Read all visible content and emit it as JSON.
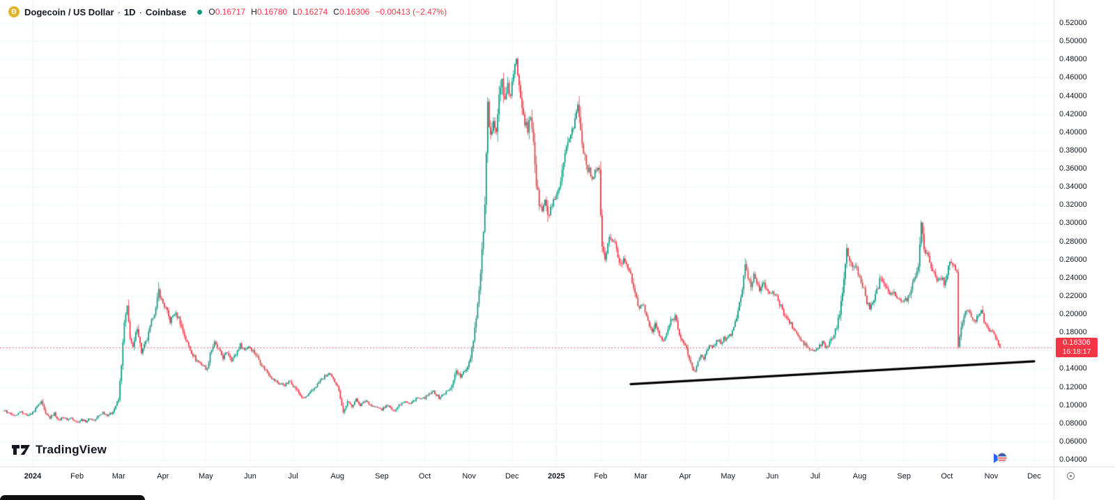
{
  "header": {
    "symbol_letter": "Ð",
    "title": "Dogecoin / US Dollar",
    "dot": "·",
    "interval": "1D",
    "exchange": "Coinbase",
    "ohlc": {
      "o_label": "O",
      "o": "0.16717",
      "h_label": "H",
      "h": "0.16780",
      "l_label": "L",
      "l": "0.16274",
      "c_label": "C",
      "c": "0.16306",
      "change": "−0.00413 (−2.47%)"
    }
  },
  "last_price": {
    "value": "0.16306",
    "countdown": "16:18:17"
  },
  "logo": {
    "text": "TradingView"
  },
  "colors": {
    "up": "#089981",
    "down": "#F23645",
    "grid": "#f0f3fa",
    "text": "#131722",
    "axis_border": "#e0e3eb",
    "trendline": "#000000",
    "symbol_icon_bg": "#e0b42c",
    "status_dot": "#089981"
  },
  "price_axis": {
    "labels": [
      "0.52000",
      "0.50000",
      "0.48000",
      "0.46000",
      "0.44000",
      "0.42000",
      "0.40000",
      "0.38000",
      "0.36000",
      "0.34000",
      "0.32000",
      "0.30000",
      "0.28000",
      "0.26000",
      "0.24000",
      "0.22000",
      "0.20000",
      "0.18000",
      "0.16000",
      "0.14000",
      "0.12000",
      "0.10000",
      "0.08000",
      "0.06000",
      "0.04000"
    ]
  },
  "chart_data": {
    "type": "candlestick",
    "title": "Dogecoin / US Dollar · 1D · Coinbase",
    "interval": "1D",
    "ylim": [
      0.04,
      0.52
    ],
    "grid_step": 0.02,
    "day_range": [
      -20,
      676
    ],
    "ticks": [
      {
        "label": "2024",
        "day": 0,
        "bold": true
      },
      {
        "label": "Feb",
        "day": 31
      },
      {
        "label": "Mar",
        "day": 60
      },
      {
        "label": "Apr",
        "day": 91
      },
      {
        "label": "May",
        "day": 121
      },
      {
        "label": "Jun",
        "day": 152
      },
      {
        "label": "Jul",
        "day": 182
      },
      {
        "label": "Aug",
        "day": 213
      },
      {
        "label": "Sep",
        "day": 244
      },
      {
        "label": "Oct",
        "day": 274
      },
      {
        "label": "Nov",
        "day": 305
      },
      {
        "label": "Dec",
        "day": 335
      },
      {
        "label": "2025",
        "day": 366,
        "bold": true
      },
      {
        "label": "Feb",
        "day": 397
      },
      {
        "label": "Mar",
        "day": 425
      },
      {
        "label": "Apr",
        "day": 456
      },
      {
        "label": "May",
        "day": 486
      },
      {
        "label": "Jun",
        "day": 517
      },
      {
        "label": "Jul",
        "day": 547
      },
      {
        "label": "Aug",
        "day": 578
      },
      {
        "label": "Sep",
        "day": 609
      },
      {
        "label": "Oct",
        "day": 639
      },
      {
        "label": "Nov",
        "day": 670
      },
      {
        "label": "Dec",
        "day": 700
      }
    ],
    "price_path": [
      [
        -20,
        0.094
      ],
      [
        -14,
        0.089
      ],
      [
        -8,
        0.092
      ],
      [
        -3,
        0.088
      ],
      [
        0,
        0.092
      ],
      [
        3,
        0.098
      ],
      [
        6,
        0.103
      ],
      [
        9,
        0.09
      ],
      [
        12,
        0.086
      ],
      [
        15,
        0.091
      ],
      [
        18,
        0.083
      ],
      [
        21,
        0.087
      ],
      [
        24,
        0.084
      ],
      [
        27,
        0.086
      ],
      [
        31,
        0.081
      ],
      [
        34,
        0.084
      ],
      [
        37,
        0.082
      ],
      [
        40,
        0.085
      ],
      [
        43,
        0.083
      ],
      [
        46,
        0.088
      ],
      [
        49,
        0.092
      ],
      [
        52,
        0.089
      ],
      [
        55,
        0.091
      ],
      [
        57,
        0.096
      ],
      [
        60,
        0.106
      ],
      [
        62,
        0.145
      ],
      [
        64,
        0.19
      ],
      [
        66,
        0.207
      ],
      [
        68,
        0.175
      ],
      [
        70,
        0.162
      ],
      [
        73,
        0.186
      ],
      [
        76,
        0.158
      ],
      [
        80,
        0.172
      ],
      [
        84,
        0.198
      ],
      [
        86,
        0.205
      ],
      [
        88,
        0.226
      ],
      [
        90,
        0.215
      ],
      [
        93,
        0.206
      ],
      [
        96,
        0.192
      ],
      [
        99,
        0.201
      ],
      [
        102,
        0.196
      ],
      [
        105,
        0.181
      ],
      [
        108,
        0.168
      ],
      [
        111,
        0.158
      ],
      [
        114,
        0.15
      ],
      [
        118,
        0.145
      ],
      [
        122,
        0.139
      ],
      [
        124,
        0.158
      ],
      [
        127,
        0.168
      ],
      [
        130,
        0.16
      ],
      [
        133,
        0.152
      ],
      [
        136,
        0.158
      ],
      [
        139,
        0.15
      ],
      [
        142,
        0.156
      ],
      [
        145,
        0.166
      ],
      [
        148,
        0.161
      ],
      [
        151,
        0.165
      ],
      [
        155,
        0.158
      ],
      [
        158,
        0.15
      ],
      [
        161,
        0.142
      ],
      [
        164,
        0.136
      ],
      [
        168,
        0.128
      ],
      [
        172,
        0.124
      ],
      [
        176,
        0.122
      ],
      [
        180,
        0.126
      ],
      [
        183,
        0.12
      ],
      [
        186,
        0.113
      ],
      [
        189,
        0.107
      ],
      [
        192,
        0.11
      ],
      [
        195,
        0.115
      ],
      [
        198,
        0.121
      ],
      [
        201,
        0.127
      ],
      [
        204,
        0.131
      ],
      [
        207,
        0.134
      ],
      [
        210,
        0.128
      ],
      [
        213,
        0.122
      ],
      [
        215,
        0.108
      ],
      [
        217,
        0.092
      ],
      [
        220,
        0.103
      ],
      [
        223,
        0.099
      ],
      [
        226,
        0.106
      ],
      [
        229,
        0.1
      ],
      [
        233,
        0.105
      ],
      [
        237,
        0.099
      ],
      [
        241,
        0.097
      ],
      [
        244,
        0.095
      ],
      [
        248,
        0.1
      ],
      [
        252,
        0.093
      ],
      [
        256,
        0.1
      ],
      [
        260,
        0.105
      ],
      [
        264,
        0.101
      ],
      [
        268,
        0.108
      ],
      [
        272,
        0.106
      ],
      [
        276,
        0.11
      ],
      [
        280,
        0.115
      ],
      [
        284,
        0.108
      ],
      [
        288,
        0.113
      ],
      [
        292,
        0.118
      ],
      [
        296,
        0.138
      ],
      [
        299,
        0.131
      ],
      [
        302,
        0.137
      ],
      [
        304,
        0.143
      ],
      [
        306,
        0.153
      ],
      [
        308,
        0.172
      ],
      [
        310,
        0.198
      ],
      [
        312,
        0.225
      ],
      [
        314,
        0.268
      ],
      [
        316,
        0.318
      ],
      [
        317,
        0.372
      ],
      [
        318,
        0.428
      ],
      [
        319,
        0.405
      ],
      [
        320,
        0.392
      ],
      [
        322,
        0.418
      ],
      [
        324,
        0.402
      ],
      [
        326,
        0.438
      ],
      [
        328,
        0.458
      ],
      [
        330,
        0.432
      ],
      [
        332,
        0.448
      ],
      [
        334,
        0.442
      ],
      [
        336,
        0.462
      ],
      [
        338,
        0.478
      ],
      [
        340,
        0.455
      ],
      [
        342,
        0.432
      ],
      [
        344,
        0.412
      ],
      [
        346,
        0.4
      ],
      [
        348,
        0.418
      ],
      [
        350,
        0.392
      ],
      [
        352,
        0.342
      ],
      [
        354,
        0.322
      ],
      [
        356,
        0.312
      ],
      [
        358,
        0.326
      ],
      [
        360,
        0.306
      ],
      [
        362,
        0.316
      ],
      [
        364,
        0.322
      ],
      [
        366,
        0.326
      ],
      [
        369,
        0.345
      ],
      [
        372,
        0.372
      ],
      [
        375,
        0.396
      ],
      [
        378,
        0.406
      ],
      [
        380,
        0.421
      ],
      [
        381,
        0.432
      ],
      [
        383,
        0.401
      ],
      [
        385,
        0.381
      ],
      [
        387,
        0.366
      ],
      [
        389,
        0.356
      ],
      [
        391,
        0.351
      ],
      [
        394,
        0.361
      ],
      [
        396,
        0.354
      ],
      [
        398,
        0.272
      ],
      [
        400,
        0.261
      ],
      [
        402,
        0.276
      ],
      [
        404,
        0.286
      ],
      [
        407,
        0.276
      ],
      [
        409,
        0.263
      ],
      [
        411,
        0.253
      ],
      [
        413,
        0.263
      ],
      [
        415,
        0.257
      ],
      [
        417,
        0.247
      ],
      [
        419,
        0.236
      ],
      [
        421,
        0.221
      ],
      [
        423,
        0.211
      ],
      [
        425,
        0.207
      ],
      [
        427,
        0.209
      ],
      [
        429,
        0.198
      ],
      [
        431,
        0.189
      ],
      [
        433,
        0.179
      ],
      [
        435,
        0.189
      ],
      [
        437,
        0.181
      ],
      [
        439,
        0.173
      ],
      [
        441,
        0.169
      ],
      [
        443,
        0.179
      ],
      [
        446,
        0.192
      ],
      [
        449,
        0.198
      ],
      [
        451,
        0.186
      ],
      [
        453,
        0.173
      ],
      [
        455,
        0.167
      ],
      [
        457,
        0.161
      ],
      [
        459,
        0.151
      ],
      [
        461,
        0.141
      ],
      [
        463,
        0.136
      ],
      [
        465,
        0.148
      ],
      [
        467,
        0.156
      ],
      [
        469,
        0.152
      ],
      [
        471,
        0.158
      ],
      [
        473,
        0.165
      ],
      [
        475,
        0.162
      ],
      [
        477,
        0.168
      ],
      [
        479,
        0.172
      ],
      [
        481,
        0.168
      ],
      [
        483,
        0.174
      ],
      [
        485,
        0.172
      ],
      [
        488,
        0.178
      ],
      [
        490,
        0.186
      ],
      [
        492,
        0.196
      ],
      [
        494,
        0.212
      ],
      [
        496,
        0.228
      ],
      [
        498,
        0.252
      ],
      [
        500,
        0.241
      ],
      [
        502,
        0.231
      ],
      [
        504,
        0.243
      ],
      [
        506,
        0.236
      ],
      [
        508,
        0.228
      ],
      [
        510,
        0.236
      ],
      [
        512,
        0.229
      ],
      [
        514,
        0.222
      ],
      [
        516,
        0.226
      ],
      [
        519,
        0.221
      ],
      [
        522,
        0.211
      ],
      [
        525,
        0.201
      ],
      [
        528,
        0.193
      ],
      [
        531,
        0.186
      ],
      [
        534,
        0.178
      ],
      [
        537,
        0.171
      ],
      [
        540,
        0.166
      ],
      [
        543,
        0.161
      ],
      [
        546,
        0.159
      ],
      [
        549,
        0.163
      ],
      [
        552,
        0.168
      ],
      [
        555,
        0.163
      ],
      [
        558,
        0.171
      ],
      [
        560,
        0.178
      ],
      [
        562,
        0.186
      ],
      [
        564,
        0.201
      ],
      [
        566,
        0.226
      ],
      [
        568,
        0.258
      ],
      [
        569,
        0.272
      ],
      [
        571,
        0.258
      ],
      [
        573,
        0.249
      ],
      [
        575,
        0.256
      ],
      [
        577,
        0.243
      ],
      [
        579,
        0.236
      ],
      [
        581,
        0.227
      ],
      [
        583,
        0.214
      ],
      [
        585,
        0.205
      ],
      [
        587,
        0.213
      ],
      [
        589,
        0.222
      ],
      [
        591,
        0.231
      ],
      [
        593,
        0.242
      ],
      [
        595,
        0.236
      ],
      [
        597,
        0.229
      ],
      [
        599,
        0.223
      ],
      [
        601,
        0.226
      ],
      [
        603,
        0.221
      ],
      [
        605,
        0.216
      ],
      [
        607,
        0.213
      ],
      [
        609,
        0.214
      ],
      [
        611,
        0.217
      ],
      [
        613,
        0.223
      ],
      [
        615,
        0.233
      ],
      [
        617,
        0.243
      ],
      [
        619,
        0.256
      ],
      [
        621,
        0.299
      ],
      [
        623,
        0.273
      ],
      [
        625,
        0.268
      ],
      [
        627,
        0.257
      ],
      [
        629,
        0.248
      ],
      [
        631,
        0.242
      ],
      [
        633,
        0.237
      ],
      [
        635,
        0.241
      ],
      [
        637,
        0.233
      ],
      [
        639,
        0.246
      ],
      [
        641,
        0.259
      ],
      [
        643,
        0.252
      ],
      [
        645,
        0.249
      ],
      [
        646,
        0.247
      ],
      [
        647,
        0.163
      ],
      [
        649,
        0.186
      ],
      [
        651,
        0.196
      ],
      [
        653,
        0.207
      ],
      [
        655,
        0.202
      ],
      [
        657,
        0.196
      ],
      [
        659,
        0.192
      ],
      [
        661,
        0.199
      ],
      [
        663,
        0.204
      ],
      [
        665,
        0.193
      ],
      [
        667,
        0.187
      ],
      [
        669,
        0.183
      ],
      [
        671,
        0.179
      ],
      [
        673,
        0.173
      ],
      [
        675,
        0.168
      ]
    ],
    "last_bar": {
      "open": 0.16717,
      "high": 0.1678,
      "low": 0.16274,
      "close": 0.16306
    },
    "price_line": {
      "value": 0.16306,
      "style": "dotted",
      "color": "#F23645"
    },
    "trendline": {
      "from": [
        418,
        0.123
      ],
      "to": [
        700,
        0.148
      ],
      "color": "#000000",
      "width": 3.2
    }
  }
}
